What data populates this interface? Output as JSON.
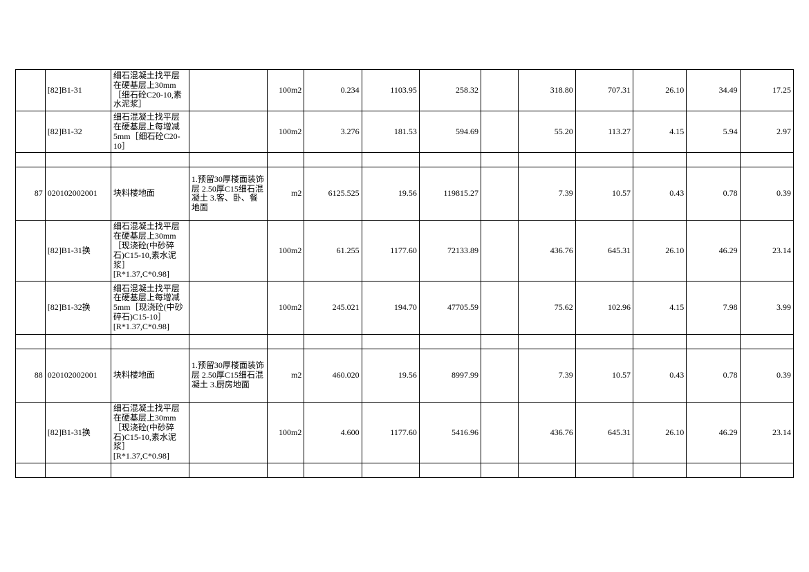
{
  "table": {
    "background_color": "#ffffff",
    "border_color": "#000000",
    "font_family": "SimSun",
    "font_size_pt": 9,
    "rows": [
      {
        "cells": [
          "",
          "[82]B1-31",
          "细石混凝土找平层在硬基层上30mm［细石砼C20-10,素水泥浆］",
          "",
          "100m2",
          "0.234",
          "1103.95",
          "258.32",
          "",
          "318.80",
          "707.31",
          "26.10",
          "34.49",
          "17.25"
        ],
        "rowClass": "h37"
      },
      {
        "cells": [
          "",
          "[82]B1-32",
          "细石混凝土找平层在硬基层上每增减5mm［细石砼C20-10］",
          "",
          "100m2",
          "3.276",
          "181.53",
          "594.69",
          "",
          "55.20",
          "113.27",
          "4.15",
          "5.94",
          "2.97"
        ],
        "rowClass": "h37"
      },
      {
        "spacer": true
      },
      {
        "cells": [
          "87",
          "020102002001",
          "块料楼地面",
          "1.预留30厚楼面装饰层\n2.50厚C15细石混凝土\n3.客、卧、餐地面",
          "m2",
          "6125.525",
          "19.56",
          "119815.27",
          "",
          "7.39",
          "10.57",
          "0.43",
          "0.78",
          "0.39"
        ],
        "rowClass": "h72"
      },
      {
        "cells": [
          "",
          "[82]B1-31换",
          "细石混凝土找平层在硬基层上30mm［现浇砼(中砂碎石)C15-10,素水泥浆］ [R*1.37,C*0.98]",
          "",
          "100m2",
          "61.255",
          "1177.60",
          "72133.89",
          "",
          "436.76",
          "645.31",
          "26.10",
          "46.29",
          "23.14"
        ],
        "rowClass": "h72"
      },
      {
        "cells": [
          "",
          "[82]B1-32换",
          "细石混凝土找平层在硬基层上每增减5mm［现浇砼(中砂碎石)C15-10］ [R*1.37,C*0.98]",
          "",
          "100m2",
          "245.021",
          "194.70",
          "47705.59",
          "",
          "75.62",
          "102.96",
          "4.15",
          "7.98",
          "3.99"
        ],
        "rowClass": "h72"
      },
      {
        "spacer": true
      },
      {
        "cells": [
          "88",
          "020102002001",
          "块料楼地面",
          "1.预留30厚楼面装饰层\n2.50厚C15细石混凝土\n3.厨房地面",
          "m2",
          "460.020",
          "19.56",
          "8997.99",
          "",
          "7.39",
          "10.57",
          "0.43",
          "0.78",
          "0.39"
        ],
        "rowClass": "h72"
      },
      {
        "cells": [
          "",
          "[82]B1-31换",
          "细石混凝土找平层在硬基层上30mm［现浇砼(中砂碎石)C15-10,素水泥浆］ [R*1.37,C*0.98]",
          "",
          "100m2",
          "4.600",
          "1177.60",
          "5416.96",
          "",
          "436.76",
          "645.31",
          "26.10",
          "46.29",
          "23.14"
        ],
        "rowClass": "h78"
      },
      {
        "spacer": true
      }
    ]
  }
}
